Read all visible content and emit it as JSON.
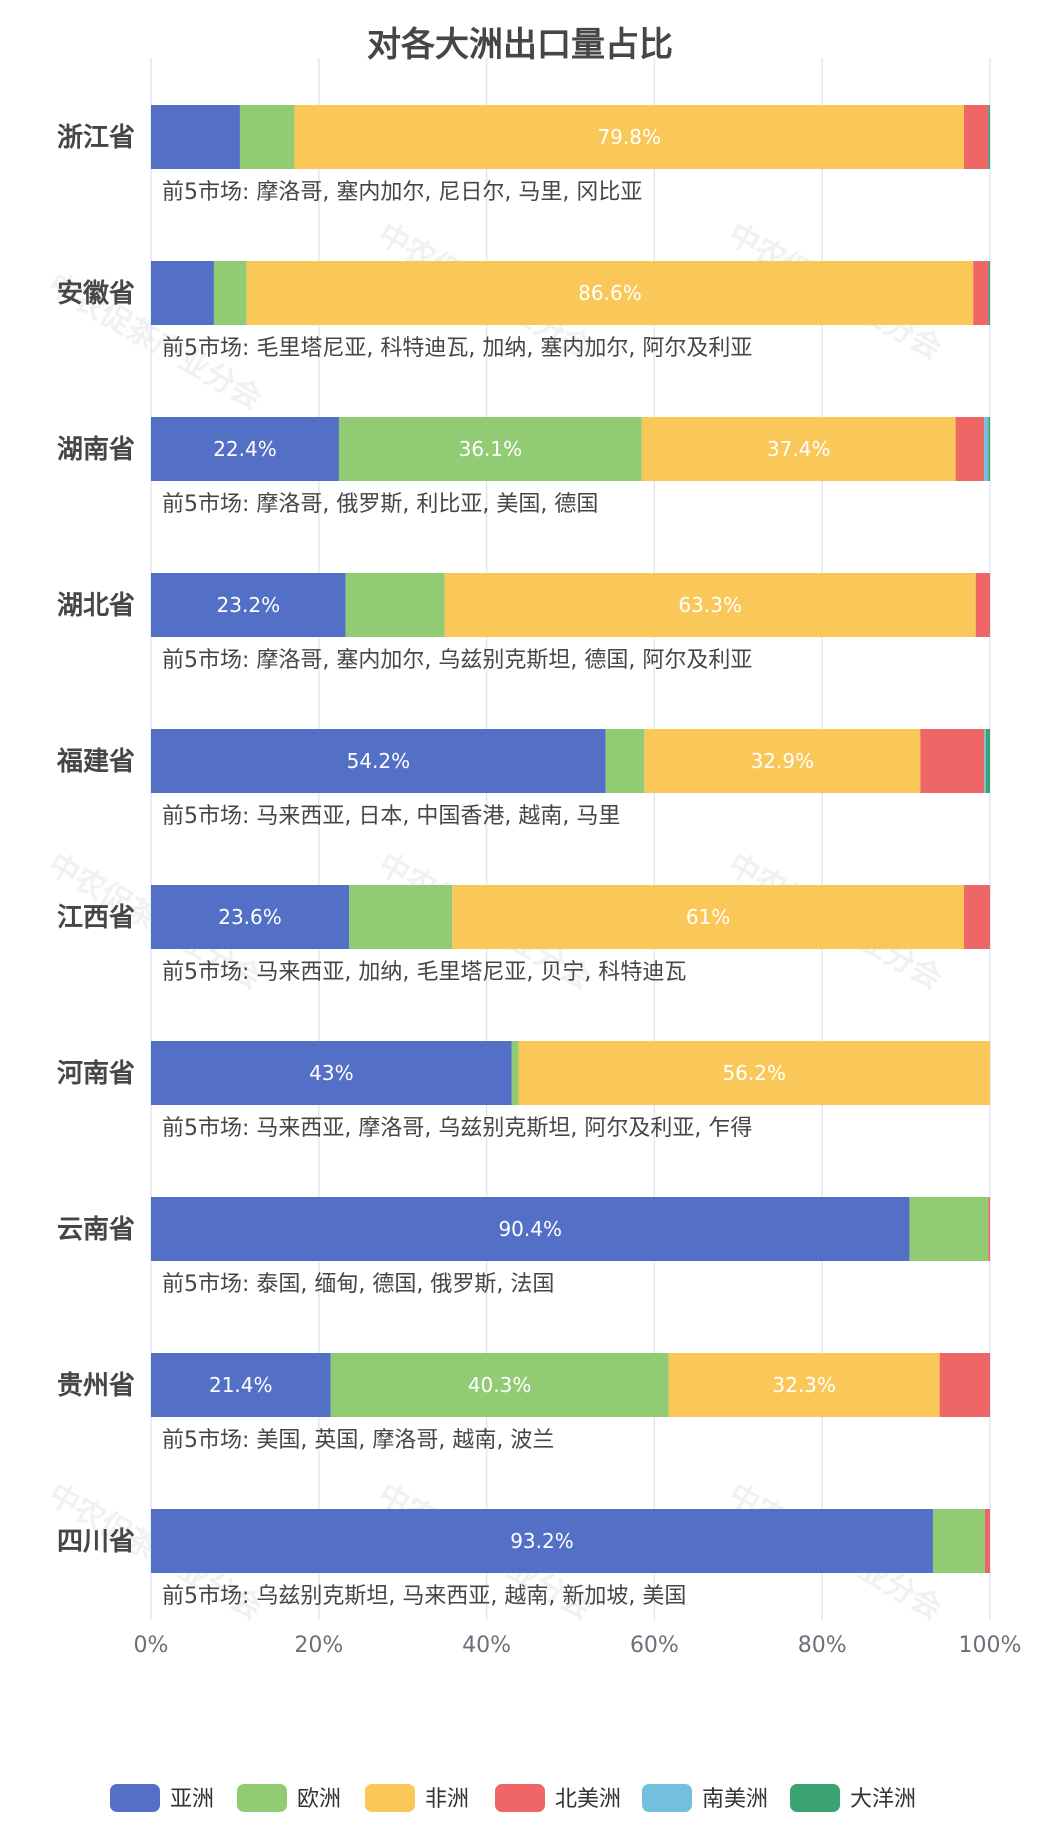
{
  "chart_data": {
    "type": "bar",
    "orientation": "horizontal",
    "stacked": true,
    "title": "对各大洲出口量占比",
    "watermark": "中农促茶产业分会",
    "xlim": [
      0,
      100
    ],
    "x_ticks": [
      "0%",
      "20%",
      "40%",
      "60%",
      "80%",
      "100%"
    ],
    "grid": true,
    "legend_position": "bottom",
    "series": [
      {
        "name": "亚洲",
        "color": "#5470c6"
      },
      {
        "name": "欧洲",
        "color": "#91cc75"
      },
      {
        "name": "非洲",
        "color": "#fac858"
      },
      {
        "name": "北美洲",
        "color": "#ee6666"
      },
      {
        "name": "南美洲",
        "color": "#73c0de"
      },
      {
        "name": "大洋洲",
        "color": "#3ba272"
      }
    ],
    "rows": [
      {
        "province": "浙江省",
        "values": [
          10.6,
          6.5,
          79.8,
          2.9,
          0,
          0.2
        ],
        "labels": [
          "",
          "",
          "79.8%",
          "",
          "",
          ""
        ],
        "markets": "前5市场: 摩洛哥, 塞内加尔, 尼日尔, 马里, 冈比亚"
      },
      {
        "province": "安徽省",
        "values": [
          7.5,
          3.9,
          86.6,
          1.8,
          0,
          0.2
        ],
        "labels": [
          "",
          "",
          "86.6%",
          "",
          "",
          ""
        ],
        "markets": "前5市场: 毛里塔尼亚, 科特迪瓦, 加纳, 塞内加尔, 阿尔及利亚"
      },
      {
        "province": "湖南省",
        "values": [
          22.4,
          36.1,
          37.4,
          3.4,
          0.5,
          0.2
        ],
        "labels": [
          "22.4%",
          "36.1%",
          "37.4%",
          "",
          "",
          ""
        ],
        "markets": "前5市场: 摩洛哥, 俄罗斯, 利比亚, 美国, 德国"
      },
      {
        "province": "湖北省",
        "values": [
          23.2,
          11.8,
          63.3,
          1.7,
          0,
          0
        ],
        "labels": [
          "23.2%",
          "",
          "63.3%",
          "",
          "",
          ""
        ],
        "markets": "前5市场: 摩洛哥, 塞内加尔, 乌兹别克斯坦, 德国, 阿尔及利亚"
      },
      {
        "province": "福建省",
        "values": [
          54.2,
          4.6,
          32.9,
          7.6,
          0.2,
          0.5
        ],
        "labels": [
          "54.2%",
          "",
          "32.9%",
          "",
          "",
          ""
        ],
        "markets": "前5市场: 马来西亚, 日本, 中国香港, 越南, 马里"
      },
      {
        "province": "江西省",
        "values": [
          23.6,
          12.3,
          61.0,
          3.1,
          0,
          0
        ],
        "labels": [
          "23.6%",
          "",
          "61%",
          "",
          "",
          ""
        ],
        "markets": "前5市场: 马来西亚, 加纳, 毛里塔尼亚, 贝宁, 科特迪瓦"
      },
      {
        "province": "河南省",
        "values": [
          43.0,
          0.8,
          56.2,
          0,
          0,
          0
        ],
        "labels": [
          "43%",
          "",
          "56.2%",
          "",
          "",
          ""
        ],
        "markets": "前5市场: 马来西亚, 摩洛哥, 乌兹别克斯坦, 阿尔及利亚, 乍得"
      },
      {
        "province": "云南省",
        "values": [
          90.4,
          9.4,
          0,
          0.2,
          0,
          0
        ],
        "labels": [
          "90.4%",
          "",
          "",
          "",
          "",
          ""
        ],
        "markets": "前5市场: 泰国, 缅甸, 德国, 俄罗斯, 法国"
      },
      {
        "province": "贵州省",
        "values": [
          21.4,
          40.3,
          32.3,
          6.0,
          0,
          0
        ],
        "labels": [
          "21.4%",
          "40.3%",
          "32.3%",
          "",
          "",
          ""
        ],
        "markets": "前5市场: 美国, 英国, 摩洛哥, 越南, 波兰"
      },
      {
        "province": "四川省",
        "values": [
          93.2,
          6.2,
          0,
          0.6,
          0,
          0
        ],
        "labels": [
          "93.2%",
          "",
          "",
          "",
          "",
          ""
        ],
        "markets": "前5市场: 乌兹别克斯坦, 马来西亚, 越南, 新加坡, 美国"
      }
    ]
  }
}
